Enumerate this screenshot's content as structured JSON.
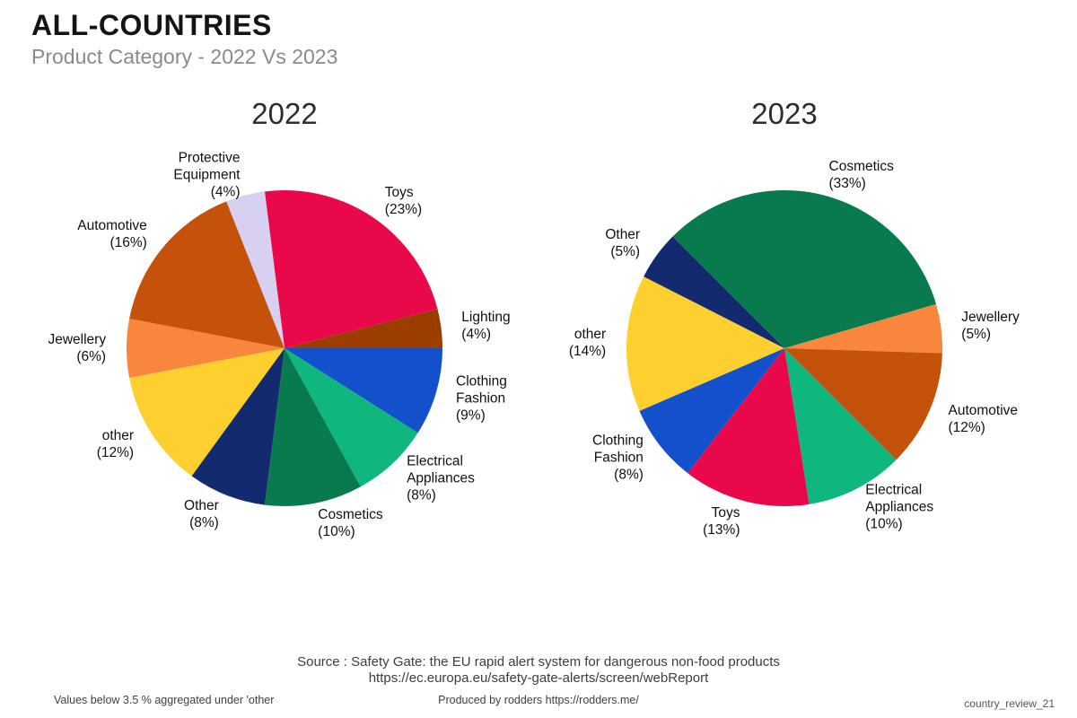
{
  "header": {
    "title": "ALL-COUNTRIES",
    "subtitle": "Product Category - 2022 Vs 2023"
  },
  "chart_data": [
    {
      "type": "pie",
      "title": "2022",
      "start_angle_deg": -7.2,
      "rotation": "clockwise-from-top",
      "legend_position": "none",
      "label_style": "name-and-percent-outside",
      "categories": [
        "Toys",
        "Lighting",
        "Clothing Fashion",
        "Electrical Appliances",
        "Cosmetics",
        "Other",
        "other",
        "Jewellery",
        "Automotive",
        "Protective Equipment"
      ],
      "values": [
        23,
        4,
        9,
        8,
        10,
        8,
        12,
        6,
        16,
        4
      ],
      "colors": [
        "#e9084a",
        "#9c3d00",
        "#1350cb",
        "#0fb77e",
        "#077a4e",
        "#132a6e",
        "#fdd02f",
        "#f8873d",
        "#c5520a",
        "#d8d0f0"
      ]
    },
    {
      "type": "pie",
      "title": "2023",
      "start_angle_deg": -45,
      "rotation": "clockwise-from-top",
      "legend_position": "none",
      "label_style": "name-and-percent-outside",
      "categories": [
        "Cosmetics",
        "Jewellery",
        "Automotive",
        "Electrical Appliances",
        "Toys",
        "Clothing Fashion",
        "other",
        "Other"
      ],
      "values": [
        33,
        5,
        12,
        10,
        13,
        8,
        14,
        5
      ],
      "colors": [
        "#077a4e",
        "#f8873d",
        "#c5520a",
        "#0fb77e",
        "#e9084a",
        "#1350cb",
        "#fdd02f",
        "#132a6e"
      ]
    }
  ],
  "footer": {
    "source_line1": "Source : Safety Gate: the EU rapid alert system for dangerous non-food products",
    "source_line2": "https://ec.europa.eu/safety-gate-alerts/screen/webReport",
    "note_left": "Values below 3.5 % aggregated under 'other",
    "produced_by": "Produced by rodders https://rodders.me/",
    "doc_ref": "country_review_21"
  }
}
